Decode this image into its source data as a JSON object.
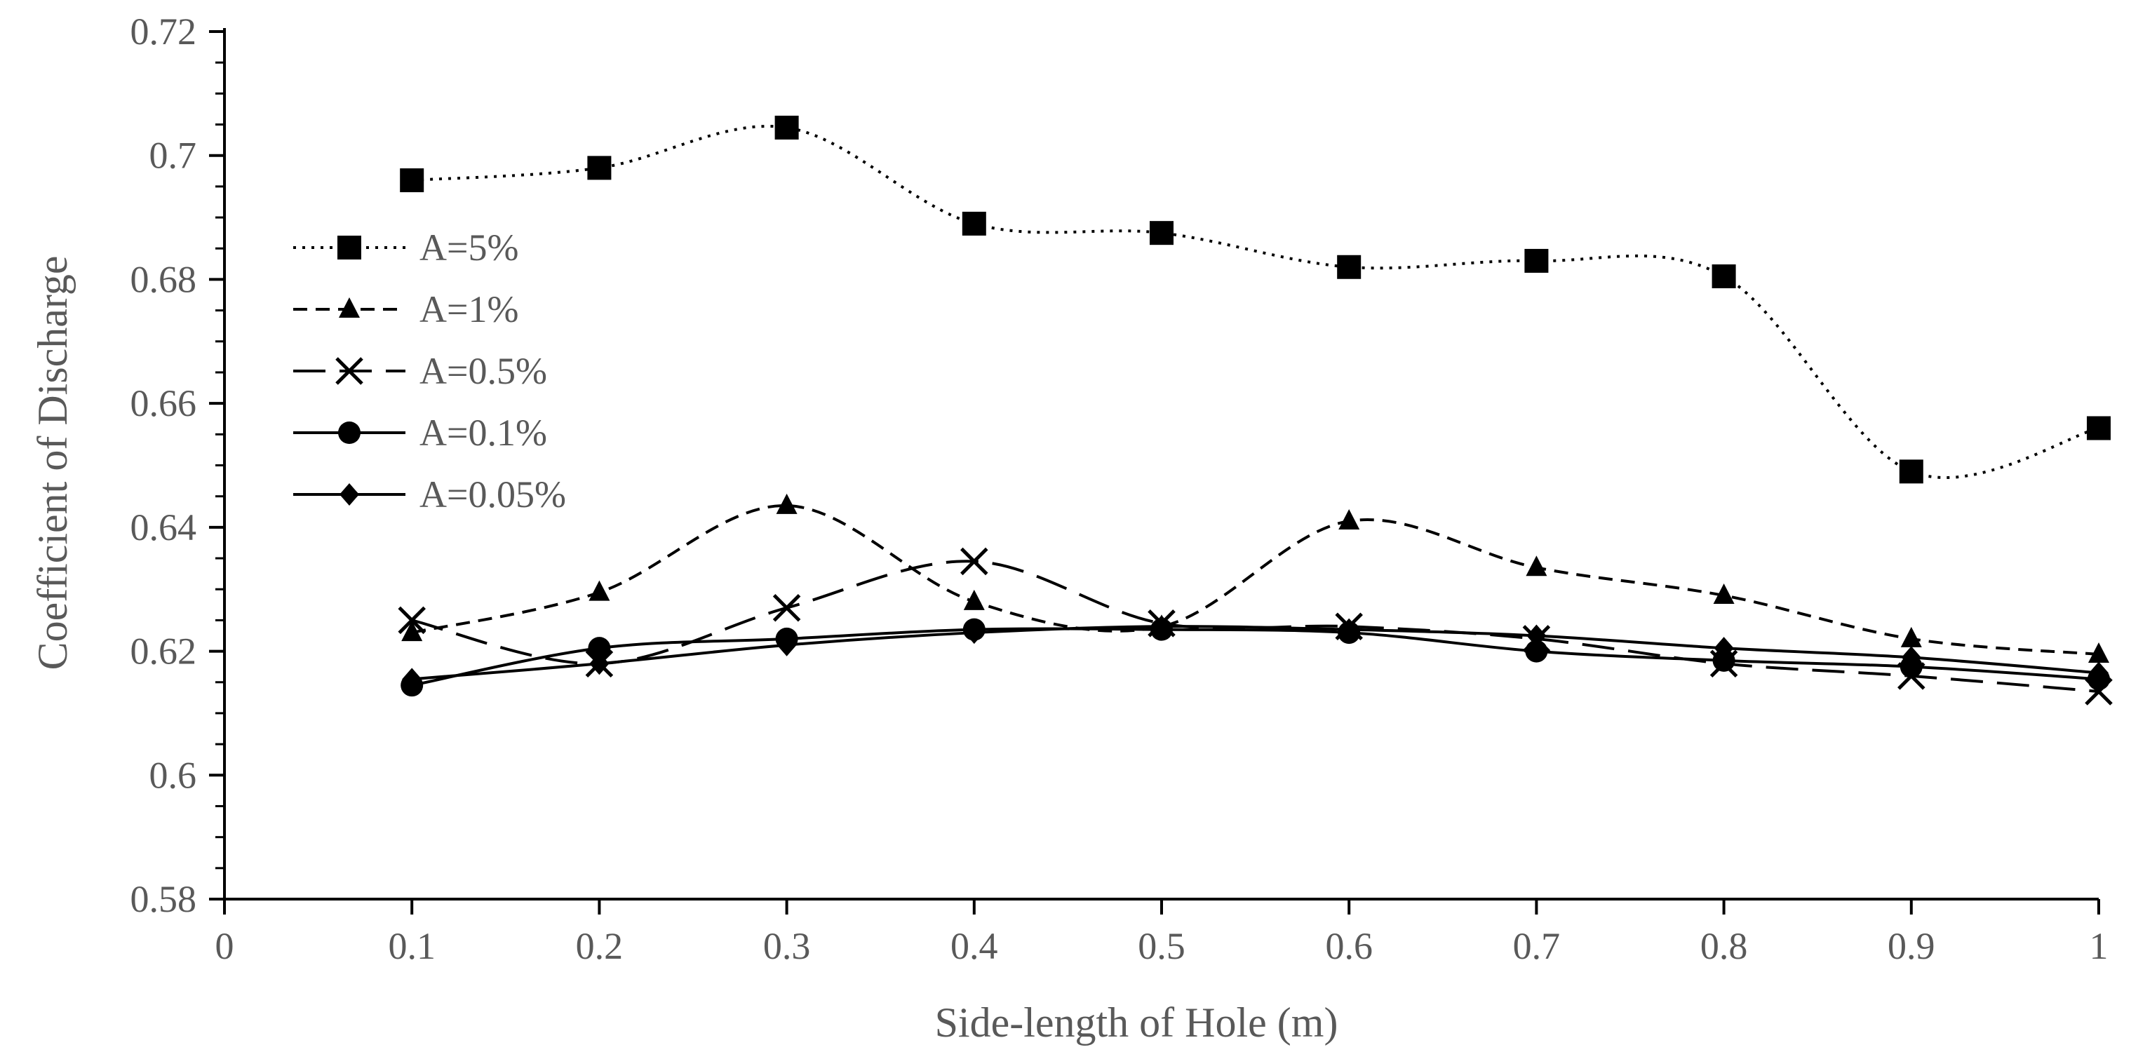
{
  "chart_data": {
    "type": "line",
    "title": "",
    "xlabel": "Side-length of Hole (m)",
    "ylabel": "Coefficient of Discharge",
    "xlim": [
      0,
      1
    ],
    "ylim": [
      0.58,
      0.72
    ],
    "x_ticks": [
      "0",
      "0.1",
      "0.2",
      "0.3",
      "0.4",
      "0.5",
      "0.6",
      "0.7",
      "0.8",
      "0.9",
      "1"
    ],
    "y_ticks": [
      "0.58",
      "0.6",
      "0.62",
      "0.64",
      "0.66",
      "0.68",
      "0.7",
      "0.72"
    ],
    "x": [
      0.1,
      0.2,
      0.3,
      0.4,
      0.5,
      0.6,
      0.7,
      0.8,
      0.9,
      1.0
    ],
    "legend_position": "left",
    "grid": false,
    "series": [
      {
        "name": "A=5%",
        "marker": "square",
        "dash": "dotted",
        "values": [
          0.696,
          0.698,
          0.7045,
          0.689,
          0.6875,
          0.682,
          0.683,
          0.6805,
          0.649,
          0.656
        ]
      },
      {
        "name": "A=1%",
        "marker": "triangle",
        "dash": "short-dash",
        "values": [
          0.623,
          0.6295,
          0.6435,
          0.628,
          0.624,
          0.641,
          0.6335,
          0.629,
          0.622,
          0.6195
        ]
      },
      {
        "name": "A=0.5%",
        "marker": "x",
        "dash": "long-dash",
        "values": [
          0.625,
          0.618,
          0.627,
          0.6345,
          0.6245,
          0.624,
          0.622,
          0.618,
          0.616,
          0.6135
        ]
      },
      {
        "name": "A=0.1%",
        "marker": "circle",
        "dash": "solid",
        "values": [
          0.6145,
          0.6205,
          0.622,
          0.6235,
          0.6235,
          0.623,
          0.62,
          0.6185,
          0.6175,
          0.6155
        ]
      },
      {
        "name": "A=0.05%",
        "marker": "diamond",
        "dash": "solid",
        "values": [
          0.6155,
          0.618,
          0.621,
          0.623,
          0.624,
          0.6235,
          0.6225,
          0.6205,
          0.619,
          0.6165
        ]
      }
    ]
  }
}
